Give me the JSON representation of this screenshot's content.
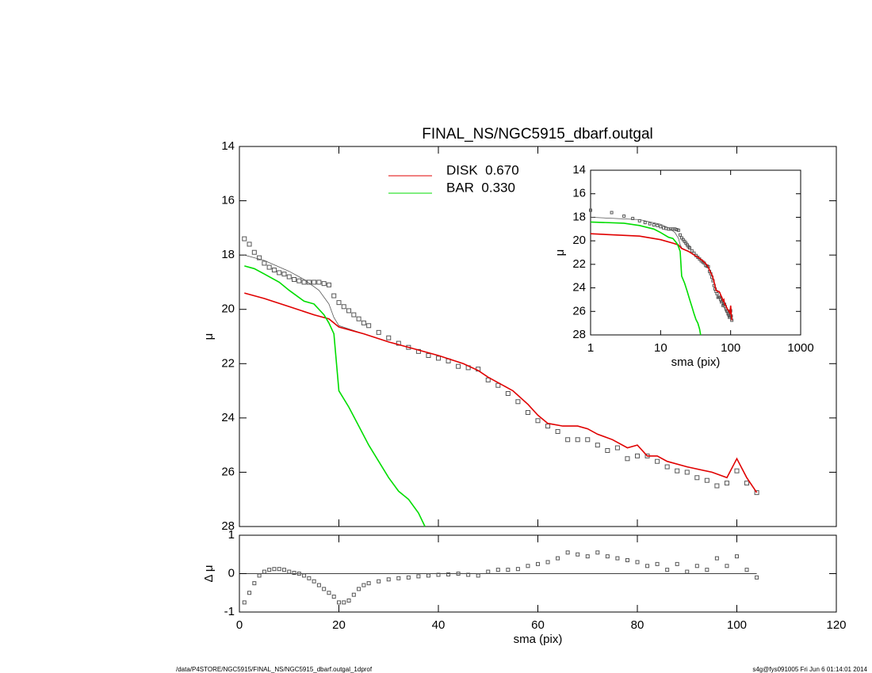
{
  "chart_data": [
    {
      "type": "line",
      "title": "FINAL_NS/NGC5915_dbarf.outgal",
      "ylabel": "μ",
      "xlim": [
        0,
        120
      ],
      "xticks": [
        0,
        20,
        40,
        60,
        80,
        100,
        120
      ],
      "ylim": [
        28,
        14
      ],
      "yticks": [
        14,
        16,
        18,
        20,
        22,
        24,
        26,
        28
      ],
      "series": [
        {
          "color": "#555555",
          "marker": "square",
          "x": [
            1,
            2,
            3,
            4,
            5,
            6,
            7,
            8,
            9,
            10,
            11,
            12,
            13,
            14,
            15,
            16,
            17,
            18,
            19,
            20,
            21,
            22,
            23,
            24,
            25,
            26,
            28,
            30,
            32,
            34,
            36,
            38,
            40,
            42,
            44,
            46,
            48,
            50,
            52,
            54,
            56,
            58,
            60,
            62,
            64,
            66,
            68,
            70,
            72,
            74,
            76,
            78,
            80,
            82,
            84,
            86,
            88,
            90,
            92,
            94,
            96,
            98,
            100,
            102,
            104
          ],
          "values": [
            17.4,
            17.6,
            17.9,
            18.1,
            18.3,
            18.45,
            18.55,
            18.65,
            18.7,
            18.8,
            18.9,
            18.95,
            19.0,
            19.0,
            19.0,
            19.0,
            19.05,
            19.1,
            19.5,
            19.75,
            19.9,
            20.05,
            20.2,
            20.35,
            20.5,
            20.6,
            20.85,
            21.05,
            21.25,
            21.4,
            21.55,
            21.7,
            21.8,
            21.9,
            22.1,
            22.15,
            22.2,
            22.6,
            22.8,
            23.1,
            23.4,
            23.8,
            24.1,
            24.3,
            24.5,
            24.8,
            24.8,
            24.8,
            25.0,
            25.2,
            25.1,
            25.5,
            25.4,
            25.4,
            25.6,
            25.8,
            25.95,
            26.0,
            26.2,
            26.3,
            26.5,
            26.4,
            25.95,
            26.4,
            26.75
          ]
        },
        {
          "color": "#555555",
          "x": [
            1,
            5,
            10,
            13,
            16,
            18,
            19,
            20,
            25,
            30,
            40
          ],
          "values": [
            18.0,
            18.2,
            18.6,
            18.9,
            19.3,
            19.8,
            20.3,
            20.6,
            20.9,
            21.2,
            21.7
          ]
        },
        {
          "name": "DISK  0.670",
          "color": "#e00000",
          "x": [
            1,
            5,
            10,
            15,
            18,
            20,
            25,
            30,
            35,
            40,
            45,
            48,
            50,
            55,
            58,
            60,
            62,
            65,
            68,
            70,
            72,
            75,
            78,
            80,
            82,
            84,
            86,
            90,
            95,
            98,
            100,
            102,
            104
          ],
          "values": [
            19.4,
            19.6,
            19.9,
            20.2,
            20.35,
            20.65,
            20.9,
            21.2,
            21.45,
            21.7,
            22.0,
            22.25,
            22.5,
            23.0,
            23.5,
            23.9,
            24.2,
            24.3,
            24.3,
            24.4,
            24.6,
            24.8,
            25.1,
            25.0,
            25.4,
            25.4,
            25.6,
            25.8,
            26.0,
            26.2,
            25.5,
            26.2,
            26.75
          ]
        },
        {
          "name": "BAR  0.330",
          "color": "#00dd00",
          "x": [
            1,
            3,
            5,
            8,
            10,
            13,
            15,
            17,
            18,
            19,
            20,
            22,
            24,
            26,
            28,
            30,
            32,
            34,
            36,
            37.3
          ],
          "values": [
            18.4,
            18.5,
            18.7,
            19.0,
            19.3,
            19.7,
            19.8,
            20.2,
            20.5,
            20.9,
            23.0,
            23.6,
            24.3,
            25.0,
            25.6,
            26.2,
            26.7,
            27.0,
            27.5,
            28.0
          ]
        }
      ]
    },
    {
      "type": "scatter",
      "xlabel": "sma (pix)",
      "ylabel": "Δ μ",
      "xlim": [
        0,
        120
      ],
      "xticks": [
        0,
        20,
        40,
        60,
        80,
        100,
        120
      ],
      "ylim": [
        -1,
        1
      ],
      "yticks": [
        -1,
        0,
        1
      ],
      "hline": 0,
      "color": "#555555",
      "x": [
        1,
        2,
        3,
        4,
        5,
        6,
        7,
        8,
        9,
        10,
        11,
        12,
        13,
        14,
        15,
        16,
        17,
        18,
        19,
        20,
        21,
        22,
        23,
        24,
        25,
        26,
        28,
        30,
        32,
        34,
        36,
        38,
        40,
        42,
        44,
        46,
        48,
        50,
        52,
        54,
        56,
        58,
        60,
        62,
        64,
        66,
        68,
        70,
        72,
        74,
        76,
        78,
        80,
        82,
        84,
        86,
        88,
        90,
        92,
        94,
        96,
        98,
        100,
        102,
        104
      ],
      "values": [
        -0.75,
        -0.5,
        -0.25,
        -0.05,
        0.05,
        0.1,
        0.12,
        0.12,
        0.1,
        0.05,
        0.02,
        0.0,
        -0.05,
        -0.12,
        -0.2,
        -0.3,
        -0.4,
        -0.5,
        -0.6,
        -0.75,
        -0.75,
        -0.7,
        -0.55,
        -0.4,
        -0.3,
        -0.25,
        -0.2,
        -0.15,
        -0.12,
        -0.1,
        -0.07,
        -0.05,
        -0.03,
        -0.02,
        0.0,
        -0.03,
        -0.05,
        0.05,
        0.1,
        0.1,
        0.12,
        0.2,
        0.25,
        0.3,
        0.4,
        0.55,
        0.5,
        0.45,
        0.55,
        0.45,
        0.4,
        0.35,
        0.3,
        0.2,
        0.25,
        0.1,
        0.25,
        0.05,
        0.2,
        0.1,
        0.4,
        0.2,
        0.45,
        0.1,
        -0.1
      ]
    },
    {
      "type": "inset",
      "xlabel": "sma (pix)",
      "ylabel": "μ",
      "xscale": "log",
      "xlim": [
        1,
        1000
      ],
      "xticks": [
        1,
        10,
        100,
        1000
      ],
      "ylim": [
        28,
        14
      ],
      "yticks": [
        14,
        16,
        18,
        20,
        22,
        24,
        26,
        28
      ]
    }
  ],
  "footer": {
    "left": "/data/P4STORE/NGC5915/FINAL_NS/NGC5915_dbarf.outgal_1dprof",
    "right": "s4g@fys091005  Fri Jun  6 01:14:01 2014"
  }
}
